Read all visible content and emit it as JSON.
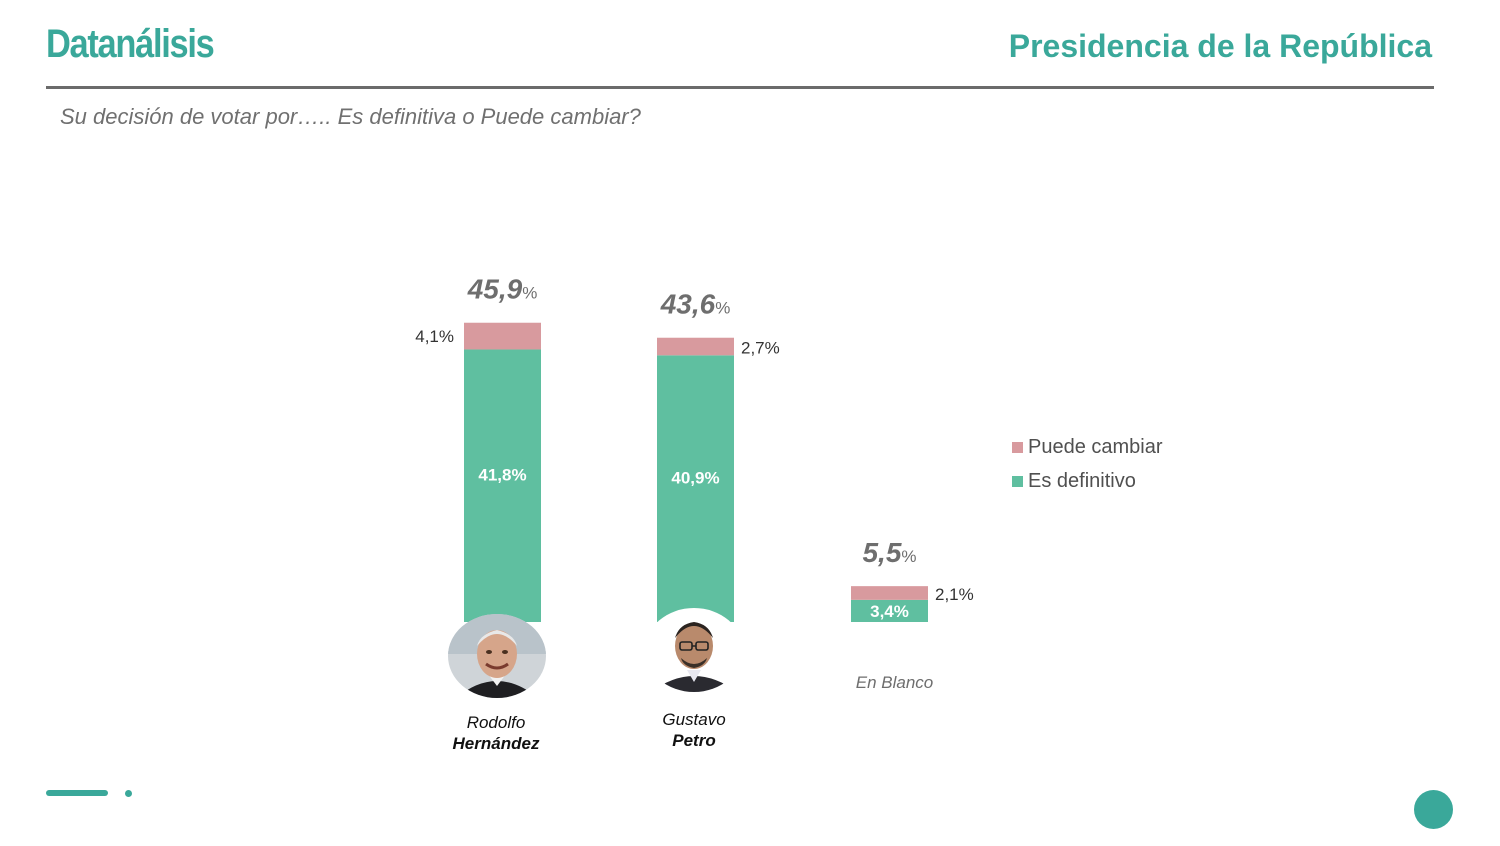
{
  "header": {
    "logo_text": "Datanálisis",
    "title": "Presidencia de la República"
  },
  "question": "Su decisión de votar por….. Es definitiva o Puede cambiar?",
  "colors": {
    "brand": "#3aa89a",
    "definitive": "#5fbfa0",
    "can_change": "#d89a9e",
    "rule": "#6b6b6b"
  },
  "legend": {
    "items": [
      {
        "label": "Puede cambiar",
        "color": "#d89a9e"
      },
      {
        "label": "Es definitivo",
        "color": "#5fbfa0"
      }
    ]
  },
  "candidates": [
    {
      "first_name": "Rodolfo",
      "last_name": "Hernández",
      "avatar_icon": "person-photo-icon"
    },
    {
      "first_name": "Gustavo",
      "last_name": "Petro",
      "avatar_icon": "person-photo-icon"
    }
  ],
  "chart_data": {
    "type": "bar",
    "stacked": true,
    "categories": [
      "Rodolfo Hernández",
      "Gustavo Petro",
      "En Blanco"
    ],
    "series": [
      {
        "name": "Es definitivo",
        "values": [
          41.8,
          40.9,
          3.4
        ],
        "labels": [
          "41,8%",
          "40,9%",
          "3,4%"
        ]
      },
      {
        "name": "Puede cambiar",
        "values": [
          4.1,
          2.7,
          2.1
        ],
        "labels": [
          "4,1%",
          "2,7%",
          "2,1%"
        ]
      }
    ],
    "totals": [
      45.9,
      43.6,
      5.5
    ],
    "total_labels": [
      "45,9",
      "43,6",
      "5,5"
    ],
    "percent_symbol": "%",
    "category_label_blank": "En Blanco",
    "legend_position": "right",
    "grid": false,
    "ylim": [
      0,
      50
    ]
  },
  "footer": {
    "decor_icon": "slide-indicator-icon"
  }
}
